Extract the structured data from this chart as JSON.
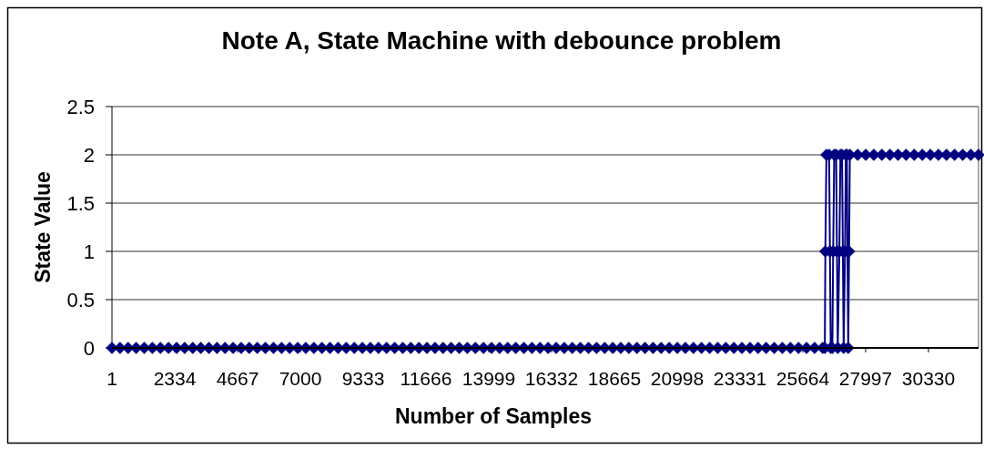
{
  "chart_data": {
    "type": "line",
    "title": "Note A, State Machine with debounce problem",
    "xlabel": "Number of Samples",
    "ylabel": "State Value",
    "x": [
      1,
      301,
      601,
      901,
      1201,
      1501,
      1801,
      2101,
      2401,
      2701,
      3001,
      3301,
      3601,
      3901,
      4201,
      4501,
      4801,
      5101,
      5401,
      5701,
      6001,
      6301,
      6601,
      6901,
      7201,
      7501,
      7801,
      8101,
      8401,
      8701,
      9001,
      9301,
      9601,
      9901,
      10201,
      10501,
      10801,
      11101,
      11401,
      11701,
      12001,
      12301,
      12601,
      12901,
      13201,
      13501,
      13801,
      14101,
      14401,
      14701,
      15001,
      15301,
      15601,
      15901,
      16201,
      16501,
      16801,
      17101,
      17401,
      17701,
      18001,
      18301,
      18601,
      18901,
      19201,
      19501,
      19801,
      20101,
      20401,
      20701,
      21001,
      21301,
      21601,
      21901,
      22201,
      22501,
      22801,
      23101,
      23401,
      23701,
      24001,
      24301,
      24601,
      24901,
      25201,
      25501,
      25801,
      26101,
      26401,
      26480,
      26500,
      26540,
      26640,
      26670,
      26700,
      26760,
      26790,
      26830,
      26900,
      26930,
      26960,
      27020,
      27060,
      27120,
      27150,
      27180,
      27230,
      27260,
      27300,
      27320,
      27350,
      27380,
      27410,
      27700,
      28000,
      28300,
      28600,
      28900,
      29200,
      29500,
      29800,
      30100,
      30400,
      30700,
      31000,
      31300,
      31600,
      31900,
      32190
    ],
    "series": [
      {
        "color": "#000080",
        "values": [
          0,
          0,
          0,
          0,
          0,
          0,
          0,
          0,
          0,
          0,
          0,
          0,
          0,
          0,
          0,
          0,
          0,
          0,
          0,
          0,
          0,
          0,
          0,
          0,
          0,
          0,
          0,
          0,
          0,
          0,
          0,
          0,
          0,
          0,
          0,
          0,
          0,
          0,
          0,
          0,
          0,
          0,
          0,
          0,
          0,
          0,
          0,
          0,
          0,
          0,
          0,
          0,
          0,
          0,
          0,
          0,
          0,
          0,
          0,
          0,
          0,
          0,
          0,
          0,
          0,
          0,
          0,
          0,
          0,
          0,
          0,
          0,
          0,
          0,
          0,
          0,
          0,
          0,
          0,
          0,
          0,
          0,
          0,
          0,
          0,
          0,
          0,
          0,
          0,
          0,
          1,
          2,
          2,
          1,
          0,
          0,
          1,
          2,
          2,
          1,
          0,
          1,
          2,
          2,
          1,
          0,
          1,
          2,
          2,
          1,
          0,
          1,
          2,
          2,
          2,
          2,
          2,
          2,
          2,
          2,
          2,
          2,
          2,
          2,
          2,
          2,
          2,
          2,
          2
        ]
      }
    ],
    "xlim": [
      1,
      32190
    ],
    "xticks": [
      1,
      2334,
      4667,
      7000,
      9333,
      11666,
      13999,
      16332,
      18665,
      20998,
      23331,
      25664,
      27997,
      30330
    ],
    "ylim": [
      0,
      2.5
    ],
    "yticks": [
      0,
      0.5,
      1,
      1.5,
      2,
      2.5
    ],
    "grid": "y",
    "marker": "diamond",
    "line_style": "solid"
  }
}
